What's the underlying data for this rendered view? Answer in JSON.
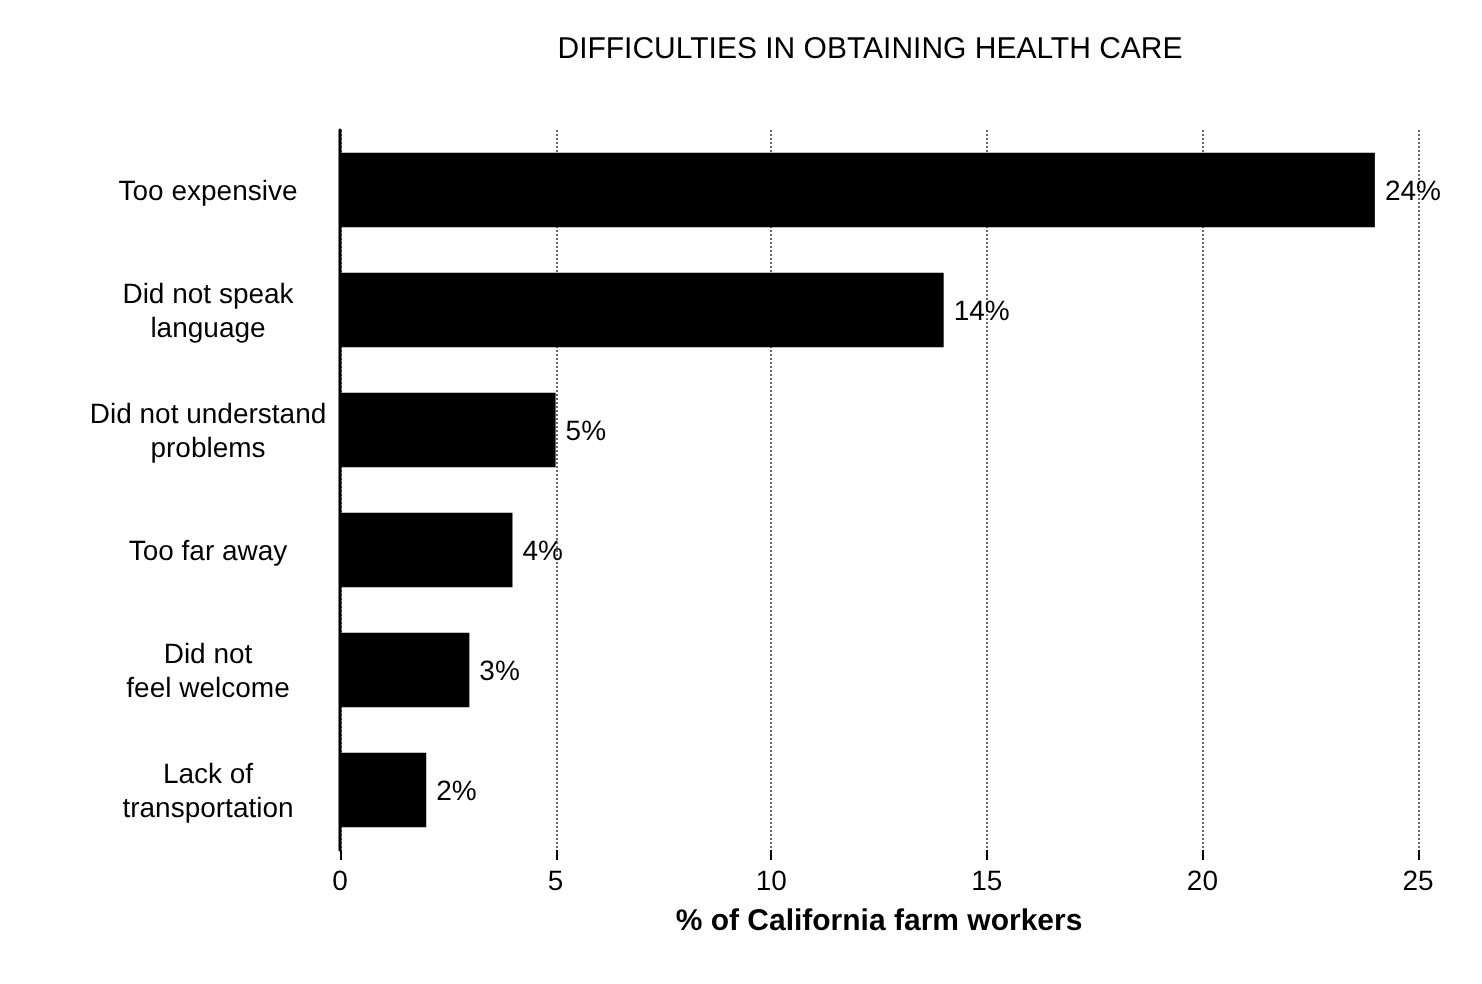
{
  "chart_data": {
    "type": "bar",
    "orientation": "horizontal",
    "title": "DIFFICULTIES IN OBTAINING HEALTH CARE",
    "xlabel": "% of California farm workers",
    "categories": [
      "Too expensive",
      "Did not speak\nlanguage",
      "Did not understand\nproblems",
      "Too far away",
      "Did not\nfeel welcome",
      "Lack of\ntransportation"
    ],
    "values": [
      24,
      14,
      5,
      4,
      3,
      2
    ],
    "color": "#000000",
    "value_labels": [
      "24%",
      "14%",
      "5%",
      "4%",
      "3%",
      "2%"
    ],
    "xlim": [
      0,
      25
    ],
    "xticks": [
      0,
      5,
      10,
      15,
      20,
      25
    ],
    "grid": "x"
  }
}
